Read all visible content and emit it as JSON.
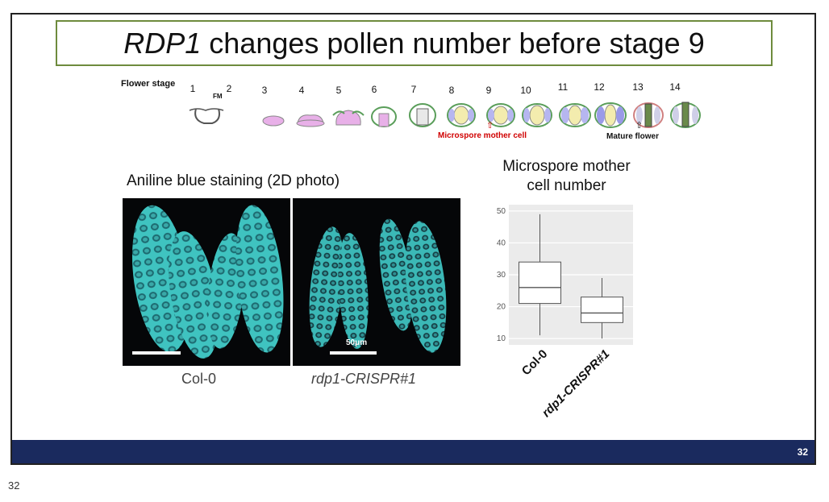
{
  "slide": {
    "title_italic": "RDP1",
    "title_rest": "changes pollen number before stage 9",
    "flower_stage_label": "Flower stage",
    "stages": [
      "1",
      "2",
      "3",
      "4",
      "5",
      "6",
      "7",
      "8",
      "9",
      "10",
      "11",
      "12",
      "13",
      "14"
    ],
    "fm_label": "FM",
    "microspore_note": "Microspore mother cell",
    "mature_note": "Mature flower",
    "staining_title": "Aniline blue staining (2D photo)",
    "scale_label": "50μm",
    "image_labels": [
      "Col-0",
      "rdp1-CRISPR#1"
    ],
    "chart_title_line1": "Microspore mother",
    "chart_title_line2": "cell number",
    "page_number": "32",
    "page_number_outside": "32"
  },
  "chart_data": {
    "type": "boxplot",
    "title": "Microspore mother cell number",
    "categories": [
      "Col-0",
      "rdp1-CRISPR#1"
    ],
    "ylim": [
      8,
      52
    ],
    "yticks": [
      10,
      20,
      30,
      40,
      50
    ],
    "boxes": [
      {
        "name": "Col-0",
        "min": 11,
        "q1": 21,
        "median": 26,
        "q3": 34,
        "max": 49
      },
      {
        "name": "rdp1-CRISPR#1",
        "min": 10,
        "q1": 15,
        "median": 18,
        "q3": 23,
        "max": 29
      }
    ],
    "grid": true,
    "colors": {
      "panel": "#ebebeb",
      "grid": "#ffffff",
      "box_fill": "#ffffff",
      "box_line": "#555555"
    }
  }
}
